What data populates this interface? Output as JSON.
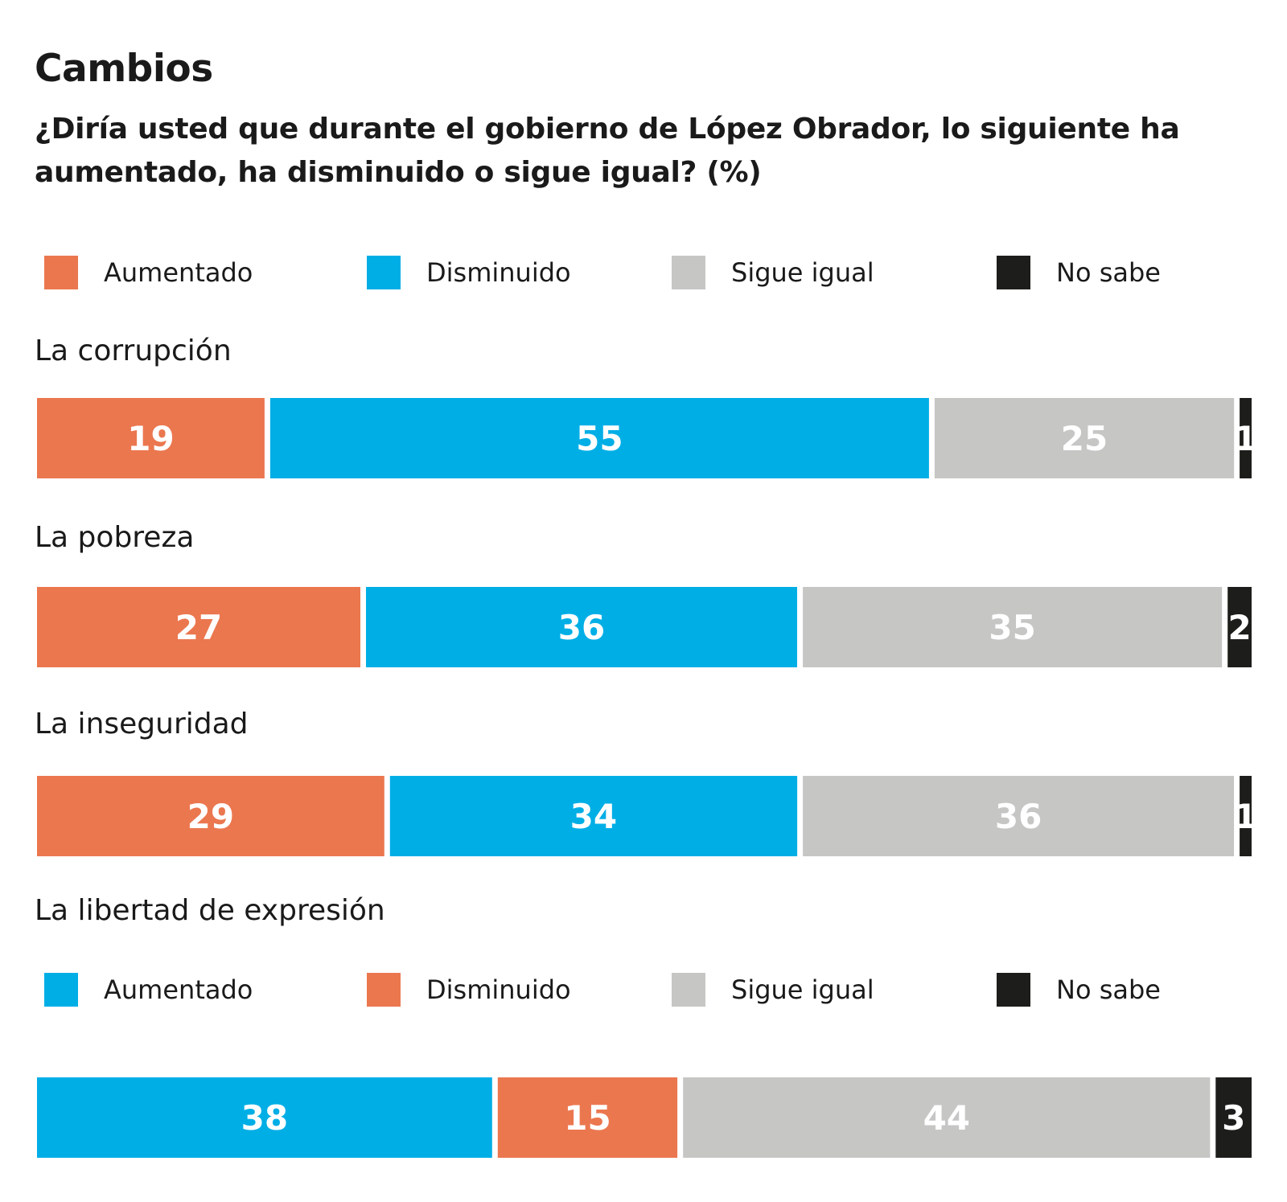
{
  "chart_data": {
    "type": "bar",
    "stacked": true,
    "orientation": "horizontal",
    "title": "Cambios",
    "subtitle": "¿Diría usted que durante el gobierno de López Obrador, lo siguiente ha aumentado, ha disminuido o sigue igual? (%)",
    "colors": {
      "orange": "#EB774F",
      "blue": "#00AEE6",
      "gray": "#C6C6C5",
      "black": "#1D1D1B"
    },
    "legend_top": [
      {
        "label": "Aumentado",
        "color": "#EB774F"
      },
      {
        "label": "Disminuido",
        "color": "#00AEE6"
      },
      {
        "label": "Sigue igual",
        "color": "#C6C6C5"
      },
      {
        "label": "No sabe",
        "color": "#1D1D1B"
      }
    ],
    "legend_bottom": [
      {
        "label": "Aumentado",
        "color": "#00AEE6"
      },
      {
        "label": "Disminuido",
        "color": "#EB774F"
      },
      {
        "label": "Sigue igual",
        "color": "#C6C6C5"
      },
      {
        "label": "No sabe",
        "color": "#1D1D1B"
      }
    ],
    "series_names": [
      "Aumentado",
      "Disminuido",
      "Sigue igual",
      "No sabe"
    ],
    "rows": [
      {
        "label": "La corrupción",
        "values": [
          19,
          55,
          25,
          1
        ],
        "colors": [
          "#EB774F",
          "#00AEE6",
          "#C6C6C5",
          "#1D1D1B"
        ]
      },
      {
        "label": "La pobreza",
        "values": [
          27,
          36,
          35,
          2
        ],
        "colors": [
          "#EB774F",
          "#00AEE6",
          "#C6C6C5",
          "#1D1D1B"
        ]
      },
      {
        "label": "La inseguridad",
        "values": [
          29,
          34,
          36,
          1
        ],
        "colors": [
          "#EB774F",
          "#00AEE6",
          "#C6C6C5",
          "#1D1D1B"
        ]
      },
      {
        "label": "La libertad de expresión",
        "values": [
          38,
          15,
          44,
          3
        ],
        "colors": [
          "#00AEE6",
          "#EB774F",
          "#C6C6C5",
          "#1D1D1B"
        ]
      }
    ],
    "xlim": [
      0,
      100
    ]
  }
}
